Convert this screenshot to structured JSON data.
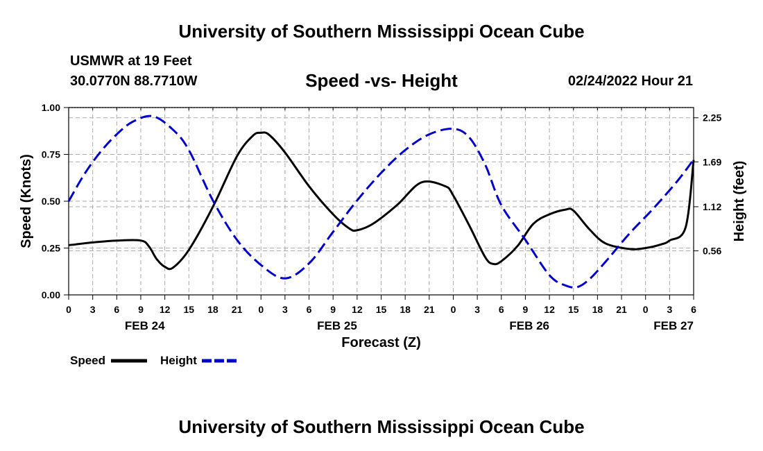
{
  "header": {
    "title": "University of Southern Mississippi Ocean Cube",
    "station": "USMWR at 19 Feet",
    "coords": "30.0770N  88.7710W",
    "subtitle": "Speed -vs- Height",
    "datetime": "02/24/2022 Hour 21"
  },
  "footer": {
    "title": "University of Southern Mississippi Ocean Cube"
  },
  "colors": {
    "speed": "#000000",
    "height": "#0000cc",
    "grid": "#aaaaaa"
  },
  "chart_data": {
    "type": "line",
    "title": "Speed -vs- Height",
    "xlabel": "Forecast (Z)",
    "ylabel": "Speed (Knots)",
    "y2label": "Height (feet)",
    "x_hours_range": [
      0,
      78
    ],
    "x_tick_step_hours": 3,
    "x_tick_labels": [
      "0",
      "3",
      "6",
      "9",
      "12",
      "15",
      "18",
      "21",
      "0",
      "3",
      "6",
      "9",
      "12",
      "15",
      "18",
      "21",
      "0",
      "3",
      "6",
      "9",
      "12",
      "15",
      "18",
      "21",
      "0",
      "3",
      "6"
    ],
    "date_labels": [
      {
        "label": "FEB 24",
        "hour": 9.5
      },
      {
        "label": "FEB 25",
        "hour": 33.5
      },
      {
        "label": "FEB 26",
        "hour": 57.5
      },
      {
        "label": "FEB 27",
        "hour": 75.5
      }
    ],
    "ylim": [
      0,
      1
    ],
    "y_ticks": [
      0,
      0.25,
      0.5,
      0.75,
      1.0
    ],
    "y_tick_labels": [
      "0.00",
      "0.25",
      "0.50",
      "0.75",
      "1.00"
    ],
    "y2lim": [
      0,
      2.38
    ],
    "y2_ticks": [
      0.56,
      1.12,
      1.69,
      2.25
    ],
    "y2_tick_labels": [
      "0.56",
      "1.12",
      "1.69",
      "2.25"
    ],
    "legend": [
      {
        "name": "Speed",
        "style": "solid"
      },
      {
        "name": "Height",
        "style": "dashed"
      }
    ],
    "series": [
      {
        "name": "Speed",
        "axis": "left",
        "x": [
          0,
          3,
          6,
          9,
          10,
          11,
          12,
          13,
          15,
          18,
          21,
          23,
          24,
          25,
          27,
          30,
          33,
          35,
          36,
          38,
          41,
          44,
          47,
          48,
          50,
          52,
          53,
          54,
          56,
          58,
          60,
          62,
          63,
          65,
          67,
          70,
          72,
          74,
          75,
          77,
          78
        ],
        "values": [
          0.265,
          0.28,
          0.29,
          0.29,
          0.26,
          0.19,
          0.15,
          0.145,
          0.24,
          0.47,
          0.74,
          0.85,
          0.865,
          0.855,
          0.76,
          0.58,
          0.43,
          0.355,
          0.345,
          0.38,
          0.48,
          0.6,
          0.58,
          0.53,
          0.37,
          0.2,
          0.165,
          0.18,
          0.26,
          0.38,
          0.43,
          0.455,
          0.45,
          0.35,
          0.275,
          0.245,
          0.25,
          0.27,
          0.29,
          0.36,
          0.72
        ]
      },
      {
        "name": "Height",
        "axis": "right",
        "x": [
          0,
          2,
          4,
          6,
          8,
          10.5,
          13,
          15,
          18,
          21,
          24,
          27,
          30,
          33,
          36,
          39,
          42,
          45,
          48,
          50,
          52,
          54,
          57,
          60,
          62,
          63.5,
          65,
          67,
          70,
          73,
          76,
          78
        ],
        "values": [
          1.19,
          1.54,
          1.82,
          2.04,
          2.2,
          2.27,
          2.1,
          1.84,
          1.2,
          0.7,
          0.38,
          0.21,
          0.4,
          0.8,
          1.2,
          1.55,
          1.84,
          2.04,
          2.11,
          2.0,
          1.65,
          1.14,
          0.7,
          0.25,
          0.12,
          0.1,
          0.2,
          0.42,
          0.78,
          1.1,
          1.45,
          1.72
        ]
      }
    ]
  }
}
